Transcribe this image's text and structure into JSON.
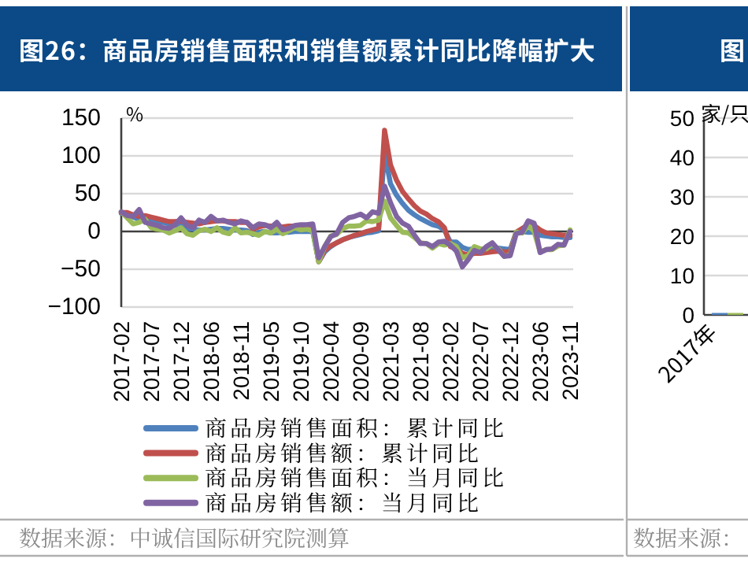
{
  "chart_data": [
    {
      "type": "line",
      "title": "图26：商品房销售面积和销售额累计同比降幅扩大",
      "ylabel": "%",
      "categories": [
        "2017-02",
        null,
        null,
        null,
        null,
        "2017-07",
        null,
        null,
        null,
        null,
        "2017-12",
        null,
        null,
        null,
        null,
        "2018-06",
        null,
        null,
        null,
        null,
        "2018-11",
        null,
        null,
        null,
        null,
        "2019-05",
        null,
        null,
        null,
        null,
        "2019-10",
        null,
        null,
        null,
        null,
        "2020-04",
        null,
        null,
        null,
        null,
        "2020-09",
        null,
        null,
        null,
        null,
        "2021-03",
        null,
        null,
        null,
        null,
        "2021-08",
        null,
        null,
        null,
        null,
        "2022-02",
        null,
        null,
        null,
        null,
        "2022-07",
        null,
        null,
        null,
        null,
        "2022-12",
        null,
        null,
        null,
        null,
        "2023-06",
        null,
        null,
        null,
        null,
        "2023-11"
      ],
      "series": [
        {
          "name": "商品房销售面积：累计同比",
          "color": "#4f81bd",
          "values": [
            24,
            22,
            19,
            16,
            16,
            14,
            13,
            12,
            10,
            8,
            8,
            4,
            3,
            2,
            2,
            3,
            4,
            4,
            3,
            2,
            2,
            1,
            -4,
            -1,
            0,
            -2,
            -2,
            -1,
            -1,
            0,
            0,
            0,
            0,
            -40,
            -27,
            -20,
            -15,
            -11,
            -8,
            -6,
            -4,
            -2,
            -1,
            1,
            104,
            63,
            48,
            37,
            28,
            22,
            17,
            13,
            9,
            7,
            2,
            -14,
            -14,
            -21,
            -24,
            -23,
            -23,
            -23,
            -22,
            -22,
            -23,
            -24,
            -1,
            0,
            -1,
            -1,
            -5,
            -6,
            -7,
            -7,
            -8,
            -8
          ]
        },
        {
          "name": "商品房销售额：累计同比",
          "color": "#c0504d",
          "values": [
            25,
            25,
            22,
            20,
            21,
            19,
            17,
            15,
            13,
            13,
            14,
            12,
            11,
            10,
            12,
            13,
            14,
            14,
            13,
            13,
            12,
            12,
            3,
            6,
            8,
            7,
            6,
            6,
            7,
            7,
            7,
            7,
            6,
            -40,
            -25,
            -19,
            -15,
            -11,
            -8,
            -5,
            -3,
            0,
            2,
            4,
            134,
            88,
            68,
            53,
            43,
            34,
            27,
            23,
            17,
            13,
            5,
            -20,
            -23,
            -29,
            -31,
            -29,
            -29,
            -28,
            -27,
            -26,
            -27,
            -27,
            -1,
            4,
            9,
            8,
            2,
            -2,
            -3,
            -4,
            -5,
            -5
          ]
        },
        {
          "name": "商品房销售面积：当月同比",
          "color": "#9bbb59",
          "values": [
            26,
            18,
            10,
            12,
            16,
            5,
            3,
            2,
            -2,
            1,
            5,
            -3,
            -5,
            1,
            3,
            0,
            5,
            -1,
            -3,
            5,
            -2,
            -1,
            -3,
            -5,
            0,
            -2,
            3,
            -3,
            1,
            5,
            2,
            3,
            1,
            -40,
            -20,
            -6,
            -4,
            4,
            7,
            7,
            8,
            14,
            13,
            15,
            40,
            18,
            8,
            -1,
            -2,
            -8,
            -15,
            -16,
            -22,
            -16,
            -18,
            -16,
            -20,
            -35,
            -32,
            -20,
            -23,
            -23,
            -17,
            -23,
            -33,
            -31,
            -1,
            -2,
            8,
            0,
            -27,
            -24,
            -24,
            -19,
            -18,
            2
          ]
        },
        {
          "name": "商品房销售额：当月同比",
          "color": "#8064a2",
          "values": [
            26,
            21,
            20,
            29,
            12,
            10,
            8,
            5,
            4,
            9,
            18,
            8,
            5,
            15,
            12,
            20,
            14,
            15,
            12,
            10,
            14,
            12,
            5,
            10,
            9,
            5,
            12,
            2,
            4,
            8,
            9,
            9,
            10,
            -35,
            -20,
            -7,
            -3,
            12,
            18,
            20,
            23,
            18,
            26,
            24,
            60,
            38,
            20,
            11,
            7,
            -5,
            -16,
            -16,
            -20,
            -14,
            -13,
            -18,
            -26,
            -47,
            -37,
            -25,
            -28,
            -20,
            -15,
            -24,
            -33,
            -32,
            -3,
            -1,
            14,
            11,
            -28,
            -24,
            -23,
            -17,
            -18,
            0
          ]
        }
      ],
      "ylim": [
        -100,
        150
      ],
      "yticks": [
        -100,
        -50,
        0,
        50,
        100,
        150
      ],
      "grid": "y",
      "legend": "bottom",
      "marker": "none",
      "line_style": "solid",
      "annotations": [
        "数据来源：中诚信国际研究院测算"
      ]
    },
    {
      "type": "bar",
      "title": "图",
      "ylabel": "家/只",
      "categories": [
        "2017年"
      ],
      "series": [
        {
          "color": "#4f81bd",
          "values": [
            0.5
          ]
        },
        {
          "color": "#9bbb59",
          "values": [
            0.5
          ]
        }
      ],
      "ylim": [
        0,
        50
      ],
      "yticks": [
        0,
        10,
        20,
        30,
        40,
        50
      ],
      "grid": "y",
      "annotations": [
        "数据来源："
      ]
    }
  ]
}
